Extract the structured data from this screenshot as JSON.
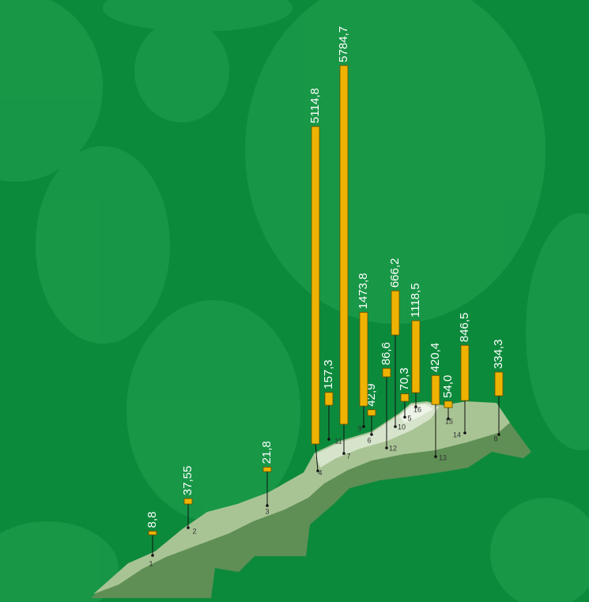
{
  "chart_data": {
    "type": "bar",
    "categories": [
      "1",
      "2",
      "3",
      "4",
      "5",
      "6",
      "7",
      "8",
      "9",
      "10",
      "11",
      "12",
      "13",
      "14",
      "15",
      "16"
    ],
    "values": [
      8.8,
      37.55,
      21.8,
      5114.8,
      70.3,
      42.9,
      5784.7,
      334.3,
      1473.8,
      666.2,
      157.3,
      86.6,
      420.4,
      846.5,
      54.0,
      1118.5
    ],
    "value_labels": [
      "8,8",
      "37,55",
      "21,8",
      "5114,8",
      "70,3",
      "42,9",
      "5784,7",
      "334,3",
      "1473,8",
      "666,2",
      "157,3",
      "86,6",
      "420,4",
      "846,5",
      "54,0",
      "1118,5"
    ],
    "color": "#eeb300"
  }
}
